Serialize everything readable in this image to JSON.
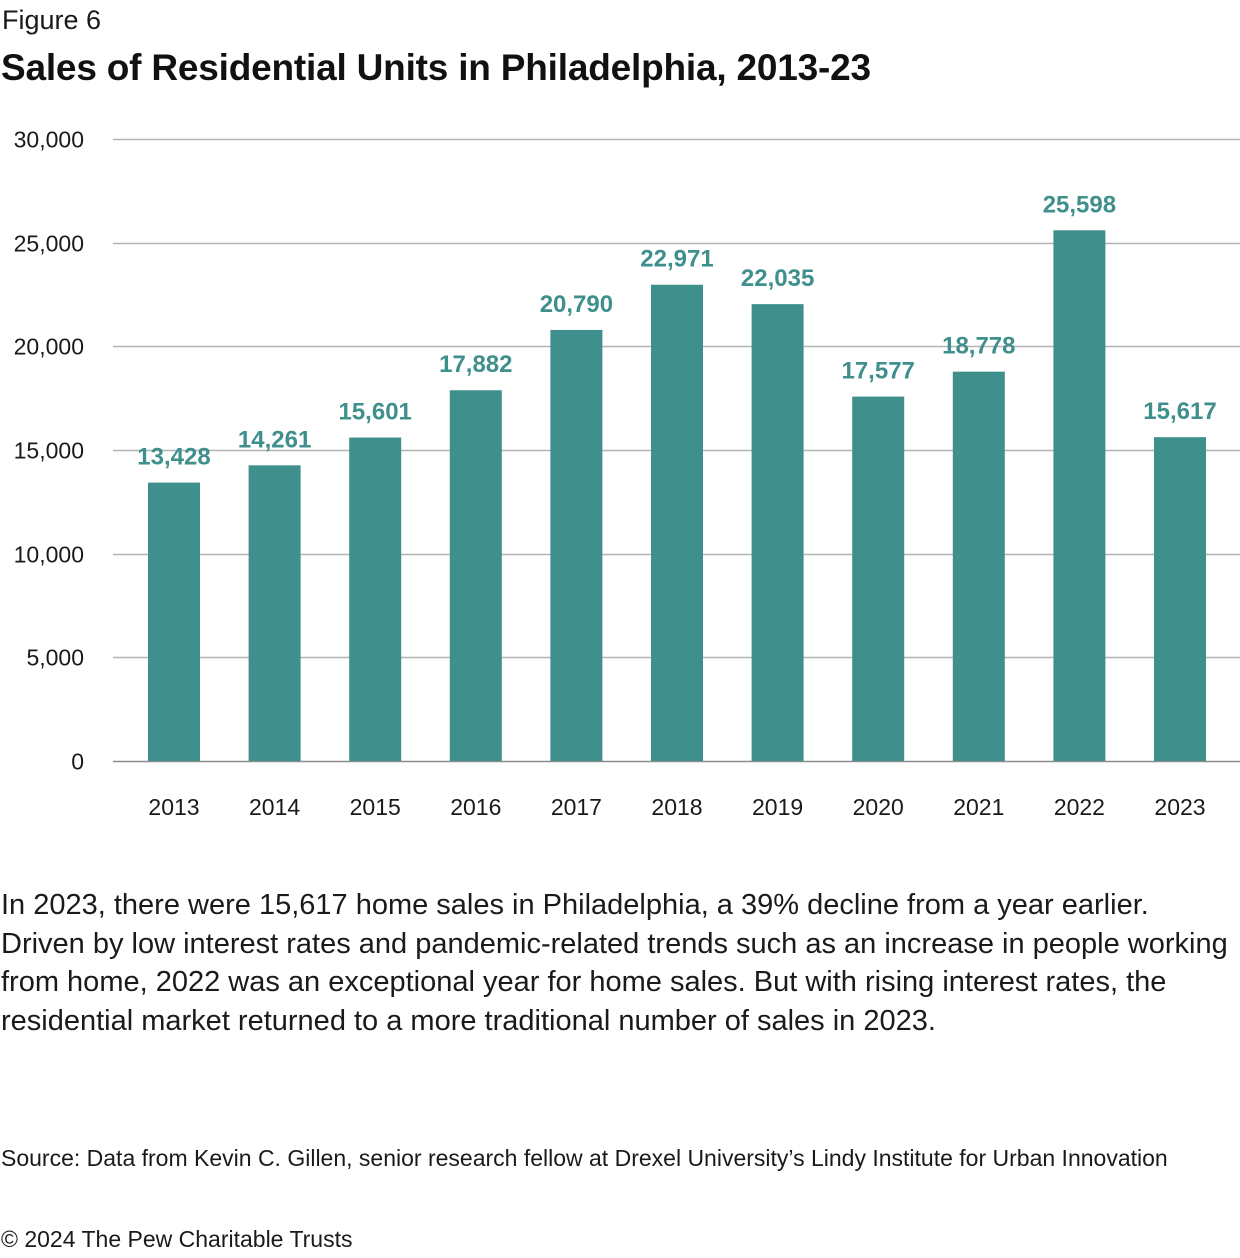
{
  "figure_label": "Figure 6",
  "title": "Sales of Residential Units in Philadelphia, 2013-23",
  "colors": {
    "bar": "#3f8f8c",
    "data_label": "#3f8f8c",
    "gridline": "#b3b3b3",
    "axis_line": "#8c8c8c"
  },
  "chart_data": {
    "type": "bar",
    "title": "Sales of Residential Units in Philadelphia, 2013-23",
    "xlabel": "",
    "ylabel": "",
    "categories": [
      "2013",
      "2014",
      "2015",
      "2016",
      "2017",
      "2018",
      "2019",
      "2020",
      "2021",
      "2022",
      "2023"
    ],
    "values": [
      13428,
      14261,
      15601,
      17882,
      20790,
      22971,
      22035,
      17577,
      18778,
      25598,
      15617
    ],
    "data_labels": [
      "13,428",
      "14,261",
      "15,601",
      "17,882",
      "20,790",
      "22,971",
      "22,035",
      "17,577",
      "18,778",
      "25,598",
      "15,617"
    ],
    "ylim": [
      0,
      30000
    ],
    "yticks": [
      0,
      5000,
      10000,
      15000,
      20000,
      25000,
      30000
    ],
    "ytick_labels": [
      "0",
      "5,000",
      "10,000",
      "15,000",
      "20,000",
      "25,000",
      "30,000"
    ],
    "grid": true,
    "legend": "none"
  },
  "description": "In 2023, there were 15,617 home sales in Philadelphia, a 39% decline from a year earlier. Driven by low interest rates and pandemic-related trends such as an increase in people working from home, 2022 was an exceptional year for home sales. But with rising interest rates, the residential market returned to a more traditional number of sales in 2023.",
  "source": "Source: Data from Kevin C. Gillen, senior research fellow at Drexel University’s Lindy Institute for Urban Innovation",
  "copyright": "© 2024 The Pew Charitable Trusts"
}
